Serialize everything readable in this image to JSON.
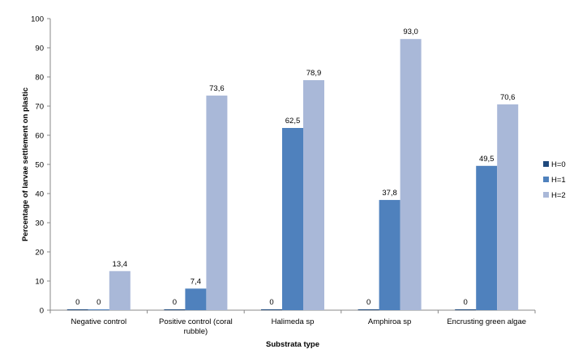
{
  "chart_data": {
    "type": "bar",
    "title": "",
    "xlabel": "Substrata type",
    "ylabel": "Percentage of larvae settlement on plastic",
    "ylim": [
      0,
      100
    ],
    "yticks": [
      "0",
      "10",
      "20",
      "30",
      "40",
      "50",
      "60",
      "70",
      "80",
      "90",
      "100"
    ],
    "ytick_values": [
      0,
      10,
      20,
      30,
      40,
      50,
      60,
      70,
      80,
      90,
      100
    ],
    "grid": false,
    "legend_position": "right",
    "categories": [
      [
        "Negative control"
      ],
      [
        "Positive control (coral",
        "rubble)"
      ],
      [
        "Halimeda sp"
      ],
      [
        "Amphiroa sp"
      ],
      [
        "Encrusting green algae"
      ]
    ],
    "series": [
      {
        "name": "H=0",
        "color": "#1f497d",
        "values": [
          0,
          0,
          0,
          0,
          0
        ],
        "labels": [
          "0",
          "0",
          "0",
          "0",
          "0"
        ]
      },
      {
        "name": "H=1",
        "color": "#4f81bd",
        "values": [
          0,
          7.4,
          62.5,
          37.8,
          49.5
        ],
        "labels": [
          "0",
          "7,4",
          "62,5",
          "37,8",
          "49,5"
        ]
      },
      {
        "name": "H=2",
        "color": "#a9b8d8",
        "values": [
          13.4,
          73.6,
          78.9,
          93.0,
          70.6
        ],
        "labels": [
          "13,4",
          "73,6",
          "78,9",
          "93,0",
          "70,6"
        ]
      }
    ]
  }
}
